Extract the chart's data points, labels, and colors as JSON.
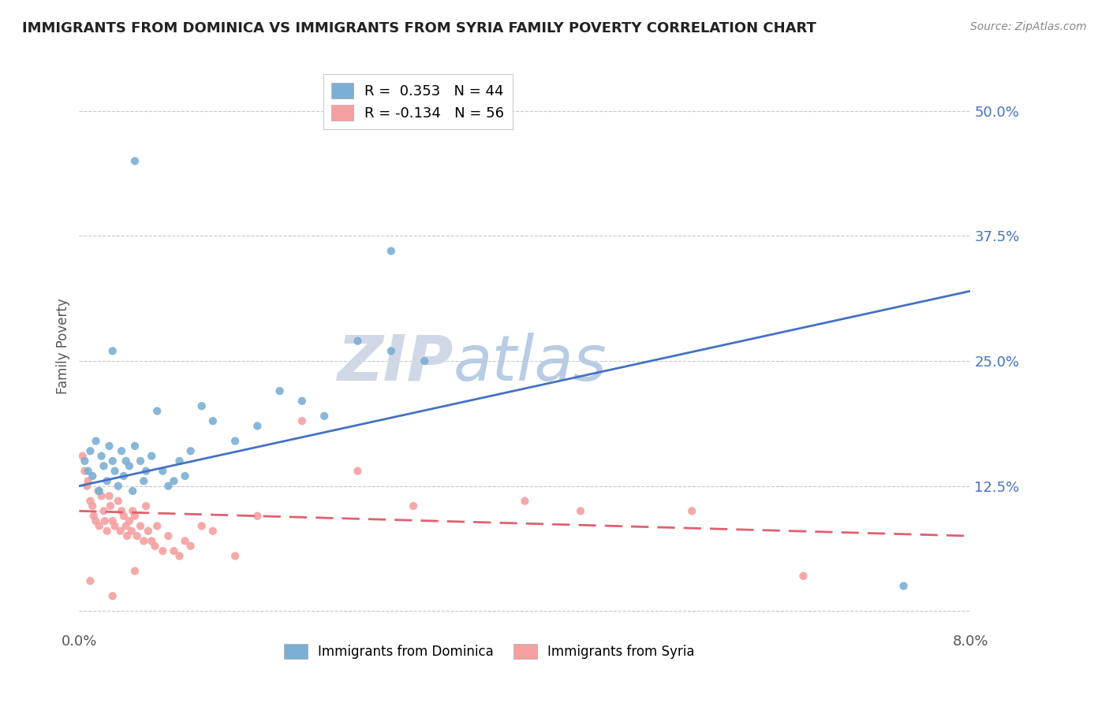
{
  "title": "IMMIGRANTS FROM DOMINICA VS IMMIGRANTS FROM SYRIA FAMILY POVERTY CORRELATION CHART",
  "source": "Source: ZipAtlas.com",
  "ylabel": "Family Poverty",
  "xlim": [
    0.0,
    8.0
  ],
  "ylim": [
    -2.0,
    55.0
  ],
  "yticks": [
    0.0,
    12.5,
    25.0,
    37.5,
    50.0
  ],
  "ytick_labels": [
    "",
    "12.5%",
    "25.0%",
    "37.5%",
    "50.0%"
  ],
  "xticks": [
    0.0,
    2.0,
    4.0,
    6.0,
    8.0
  ],
  "xtick_labels": [
    "0.0%",
    "",
    "",
    "",
    "8.0%"
  ],
  "dominica_R": 0.353,
  "dominica_N": 44,
  "syria_R": -0.134,
  "syria_N": 56,
  "blue_color": "#7bafd4",
  "pink_color": "#f4a0a0",
  "blue_line_color": "#4472c4",
  "pink_line_color": "#e06070",
  "legend_label_blue": "Immigrants from Dominica",
  "legend_label_pink": "Immigrants from Syria",
  "watermark_zip": "ZIP",
  "watermark_atlas": "atlas",
  "background_color": "#ffffff",
  "dominica_x": [
    0.05,
    0.08,
    0.1,
    0.12,
    0.15,
    0.18,
    0.2,
    0.22,
    0.25,
    0.27,
    0.3,
    0.32,
    0.35,
    0.38,
    0.4,
    0.42,
    0.45,
    0.48,
    0.5,
    0.55,
    0.58,
    0.6,
    0.65,
    0.7,
    0.75,
    0.8,
    0.85,
    0.9,
    0.95,
    1.0,
    1.1,
    1.2,
    1.4,
    1.6,
    1.8,
    2.0,
    2.2,
    2.5,
    2.8,
    3.1,
    0.3,
    0.5,
    2.8,
    7.4
  ],
  "dominica_y": [
    15.0,
    14.0,
    16.0,
    13.5,
    17.0,
    12.0,
    15.5,
    14.5,
    13.0,
    16.5,
    15.0,
    14.0,
    12.5,
    16.0,
    13.5,
    15.0,
    14.5,
    12.0,
    16.5,
    15.0,
    13.0,
    14.0,
    15.5,
    20.0,
    14.0,
    12.5,
    13.0,
    15.0,
    13.5,
    16.0,
    20.5,
    19.0,
    17.0,
    18.5,
    22.0,
    21.0,
    19.5,
    27.0,
    26.0,
    25.0,
    26.0,
    45.0,
    36.0,
    2.5
  ],
  "syria_x": [
    0.03,
    0.05,
    0.07,
    0.08,
    0.1,
    0.12,
    0.13,
    0.15,
    0.17,
    0.18,
    0.2,
    0.22,
    0.23,
    0.25,
    0.27,
    0.28,
    0.3,
    0.32,
    0.35,
    0.37,
    0.38,
    0.4,
    0.42,
    0.43,
    0.45,
    0.47,
    0.48,
    0.5,
    0.52,
    0.55,
    0.58,
    0.6,
    0.62,
    0.65,
    0.68,
    0.7,
    0.75,
    0.8,
    0.85,
    0.9,
    0.95,
    1.0,
    1.1,
    1.2,
    1.4,
    1.6,
    2.0,
    2.5,
    3.0,
    4.0,
    4.5,
    5.5,
    0.3,
    0.5,
    6.5,
    0.1
  ],
  "syria_y": [
    15.5,
    14.0,
    12.5,
    13.0,
    11.0,
    10.5,
    9.5,
    9.0,
    12.0,
    8.5,
    11.5,
    10.0,
    9.0,
    8.0,
    11.5,
    10.5,
    9.0,
    8.5,
    11.0,
    8.0,
    10.0,
    9.5,
    8.5,
    7.5,
    9.0,
    8.0,
    10.0,
    9.5,
    7.5,
    8.5,
    7.0,
    10.5,
    8.0,
    7.0,
    6.5,
    8.5,
    6.0,
    7.5,
    6.0,
    5.5,
    7.0,
    6.5,
    8.5,
    8.0,
    5.5,
    9.5,
    19.0,
    14.0,
    10.5,
    11.0,
    10.0,
    10.0,
    1.5,
    4.0,
    3.5,
    3.0
  ],
  "blue_trendline_x0": 0.0,
  "blue_trendline_y0": 12.5,
  "blue_trendline_x1": 8.0,
  "blue_trendline_y1": 32.0,
  "pink_trendline_x0": 0.0,
  "pink_trendline_y0": 10.0,
  "pink_trendline_x1": 8.0,
  "pink_trendline_y1": 7.5
}
